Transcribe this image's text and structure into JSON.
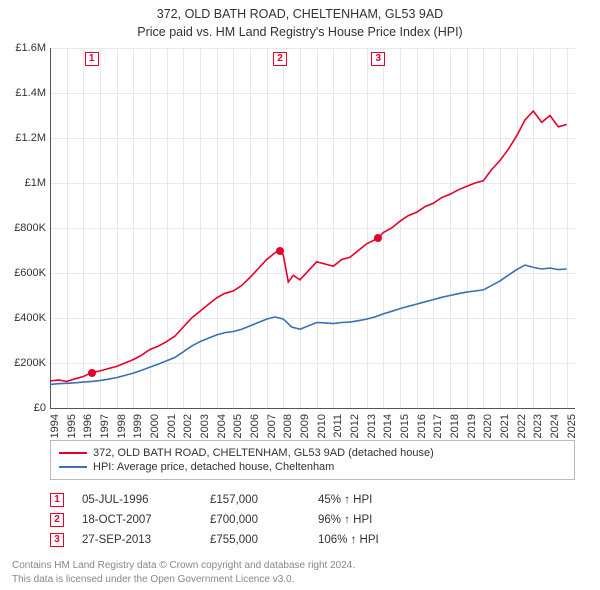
{
  "title_line1": "372, OLD BATH ROAD, CHELTENHAM, GL53 9AD",
  "title_line2": "Price paid vs. HM Land Registry's House Price Index (HPI)",
  "colors": {
    "property": "#e4002b",
    "hpi": "#3b6fb6",
    "grid": "#e8e8e8",
    "axis": "#555555",
    "text": "#333333",
    "footer": "#888888",
    "background": "#ffffff"
  },
  "chart": {
    "type": "line",
    "x_domain": [
      1994,
      2025.5
    ],
    "y_domain": [
      0,
      1600000
    ],
    "y_ticks": [
      {
        "v": 0,
        "label": "£0"
      },
      {
        "v": 200000,
        "label": "£200K"
      },
      {
        "v": 400000,
        "label": "£400K"
      },
      {
        "v": 600000,
        "label": "£600K"
      },
      {
        "v": 800000,
        "label": "£800K"
      },
      {
        "v": 1000000,
        "label": "£1M"
      },
      {
        "v": 1200000,
        "label": "£1.2M"
      },
      {
        "v": 1400000,
        "label": "£1.4M"
      },
      {
        "v": 1600000,
        "label": "£1.6M"
      }
    ],
    "x_ticks": [
      1994,
      1995,
      1996,
      1997,
      1998,
      1999,
      2000,
      2001,
      2002,
      2003,
      2004,
      2005,
      2006,
      2007,
      2008,
      2009,
      2010,
      2011,
      2012,
      2013,
      2014,
      2015,
      2016,
      2017,
      2018,
      2019,
      2020,
      2021,
      2022,
      2023,
      2024,
      2025
    ],
    "series": [
      {
        "name": "property",
        "label": "372, OLD BATH ROAD, CHELTENHAM, GL53 9AD (detached house)",
        "color_key": "property",
        "points": [
          [
            1994.0,
            120000
          ],
          [
            1994.5,
            125000
          ],
          [
            1995.0,
            118000
          ],
          [
            1995.5,
            130000
          ],
          [
            1996.0,
            140000
          ],
          [
            1996.5,
            157000
          ],
          [
            1997.0,
            165000
          ],
          [
            1997.5,
            175000
          ],
          [
            1998.0,
            185000
          ],
          [
            1998.5,
            200000
          ],
          [
            1999.0,
            215000
          ],
          [
            1999.5,
            235000
          ],
          [
            2000.0,
            260000
          ],
          [
            2000.5,
            275000
          ],
          [
            2001.0,
            295000
          ],
          [
            2001.5,
            320000
          ],
          [
            2002.0,
            360000
          ],
          [
            2002.5,
            400000
          ],
          [
            2003.0,
            430000
          ],
          [
            2003.5,
            460000
          ],
          [
            2004.0,
            490000
          ],
          [
            2004.5,
            510000
          ],
          [
            2005.0,
            520000
          ],
          [
            2005.5,
            545000
          ],
          [
            2006.0,
            580000
          ],
          [
            2006.5,
            620000
          ],
          [
            2007.0,
            660000
          ],
          [
            2007.5,
            690000
          ],
          [
            2007.8,
            700000
          ],
          [
            2008.0,
            680000
          ],
          [
            2008.3,
            560000
          ],
          [
            2008.6,
            590000
          ],
          [
            2009.0,
            570000
          ],
          [
            2009.5,
            610000
          ],
          [
            2010.0,
            650000
          ],
          [
            2010.5,
            640000
          ],
          [
            2011.0,
            630000
          ],
          [
            2011.5,
            660000
          ],
          [
            2012.0,
            670000
          ],
          [
            2012.5,
            700000
          ],
          [
            2013.0,
            730000
          ],
          [
            2013.7,
            755000
          ],
          [
            2014.0,
            780000
          ],
          [
            2014.5,
            800000
          ],
          [
            2015.0,
            830000
          ],
          [
            2015.5,
            855000
          ],
          [
            2016.0,
            870000
          ],
          [
            2016.5,
            895000
          ],
          [
            2017.0,
            910000
          ],
          [
            2017.5,
            935000
          ],
          [
            2018.0,
            950000
          ],
          [
            2018.5,
            970000
          ],
          [
            2019.0,
            985000
          ],
          [
            2019.5,
            1000000
          ],
          [
            2020.0,
            1010000
          ],
          [
            2020.5,
            1060000
          ],
          [
            2021.0,
            1100000
          ],
          [
            2021.5,
            1150000
          ],
          [
            2022.0,
            1210000
          ],
          [
            2022.5,
            1280000
          ],
          [
            2023.0,
            1320000
          ],
          [
            2023.5,
            1270000
          ],
          [
            2024.0,
            1300000
          ],
          [
            2024.5,
            1250000
          ],
          [
            2025.0,
            1260000
          ]
        ]
      },
      {
        "name": "hpi",
        "label": "HPI: Average price, detached house, Cheltenham",
        "color_key": "hpi",
        "points": [
          [
            1994.0,
            105000
          ],
          [
            1994.5,
            108000
          ],
          [
            1995.0,
            110000
          ],
          [
            1995.5,
            112000
          ],
          [
            1996.0,
            115000
          ],
          [
            1996.5,
            118000
          ],
          [
            1997.0,
            122000
          ],
          [
            1997.5,
            128000
          ],
          [
            1998.0,
            135000
          ],
          [
            1998.5,
            145000
          ],
          [
            1999.0,
            155000
          ],
          [
            1999.5,
            168000
          ],
          [
            2000.0,
            182000
          ],
          [
            2000.5,
            195000
          ],
          [
            2001.0,
            210000
          ],
          [
            2001.5,
            225000
          ],
          [
            2002.0,
            250000
          ],
          [
            2002.5,
            275000
          ],
          [
            2003.0,
            295000
          ],
          [
            2003.5,
            310000
          ],
          [
            2004.0,
            325000
          ],
          [
            2004.5,
            335000
          ],
          [
            2005.0,
            340000
          ],
          [
            2005.5,
            350000
          ],
          [
            2006.0,
            365000
          ],
          [
            2006.5,
            380000
          ],
          [
            2007.0,
            395000
          ],
          [
            2007.5,
            405000
          ],
          [
            2008.0,
            395000
          ],
          [
            2008.5,
            360000
          ],
          [
            2009.0,
            350000
          ],
          [
            2009.5,
            365000
          ],
          [
            2010.0,
            380000
          ],
          [
            2010.5,
            378000
          ],
          [
            2011.0,
            375000
          ],
          [
            2011.5,
            380000
          ],
          [
            2012.0,
            382000
          ],
          [
            2012.5,
            388000
          ],
          [
            2013.0,
            395000
          ],
          [
            2013.5,
            405000
          ],
          [
            2014.0,
            418000
          ],
          [
            2014.5,
            430000
          ],
          [
            2015.0,
            442000
          ],
          [
            2015.5,
            452000
          ],
          [
            2016.0,
            462000
          ],
          [
            2016.5,
            472000
          ],
          [
            2017.0,
            482000
          ],
          [
            2017.5,
            492000
          ],
          [
            2018.0,
            500000
          ],
          [
            2018.5,
            508000
          ],
          [
            2019.0,
            515000
          ],
          [
            2019.5,
            520000
          ],
          [
            2020.0,
            525000
          ],
          [
            2020.5,
            545000
          ],
          [
            2021.0,
            565000
          ],
          [
            2021.5,
            590000
          ],
          [
            2022.0,
            615000
          ],
          [
            2022.5,
            635000
          ],
          [
            2023.0,
            625000
          ],
          [
            2023.5,
            618000
          ],
          [
            2024.0,
            622000
          ],
          [
            2024.5,
            615000
          ],
          [
            2025.0,
            618000
          ]
        ]
      }
    ],
    "markers": [
      {
        "n": "1",
        "x": 1996.5,
        "y": 157000,
        "color_key": "property"
      },
      {
        "n": "2",
        "x": 2007.8,
        "y": 700000,
        "color_key": "property"
      },
      {
        "n": "3",
        "x": 2013.7,
        "y": 755000,
        "color_key": "property"
      }
    ]
  },
  "sales": [
    {
      "n": "1",
      "date": "05-JUL-1996",
      "price": "£157,000",
      "pct": "45% ↑ HPI"
    },
    {
      "n": "2",
      "date": "18-OCT-2007",
      "price": "£700,000",
      "pct": "96% ↑ HPI"
    },
    {
      "n": "3",
      "date": "27-SEP-2013",
      "price": "£755,000",
      "pct": "106% ↑ HPI"
    }
  ],
  "footer_line1": "Contains HM Land Registry data © Crown copyright and database right 2024.",
  "footer_line2": "This data is licensed under the Open Government Licence v3.0."
}
